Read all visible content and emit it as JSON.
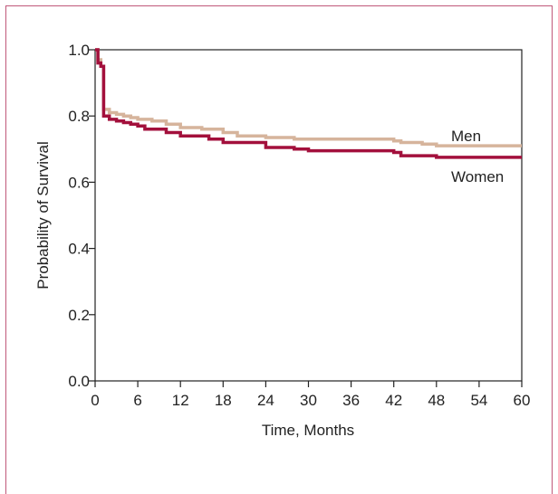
{
  "chart_data": {
    "type": "line",
    "title": "",
    "xlabel": "Time, Months",
    "ylabel": "Probability of Survival",
    "xlim": [
      0,
      60
    ],
    "ylim": [
      0.0,
      1.0
    ],
    "x_ticks": [
      0,
      6,
      12,
      18,
      24,
      30,
      36,
      42,
      48,
      54,
      60
    ],
    "x_tick_labels": [
      "0",
      "6",
      "12",
      "18",
      "24",
      "30",
      "36",
      "42",
      "48",
      "54",
      "60"
    ],
    "y_ticks": [
      0.0,
      0.2,
      0.4,
      0.6,
      0.8,
      1.0
    ],
    "y_tick_labels": [
      "0.0",
      "0.2",
      "0.4",
      "0.6",
      "0.8",
      "1.0"
    ],
    "grid": false,
    "step": true,
    "series": [
      {
        "name": "Men",
        "color": "#d6b49c",
        "x": [
          0,
          0.4,
          0.8,
          1.2,
          2,
          3,
          4,
          5,
          6,
          8,
          10,
          12,
          15,
          18,
          20,
          24,
          28,
          36,
          42,
          43,
          46,
          48,
          60
        ],
        "y": [
          1.0,
          0.97,
          0.95,
          0.82,
          0.81,
          0.805,
          0.8,
          0.795,
          0.79,
          0.785,
          0.775,
          0.765,
          0.76,
          0.75,
          0.74,
          0.735,
          0.73,
          0.73,
          0.725,
          0.72,
          0.715,
          0.71,
          0.71
        ]
      },
      {
        "name": "Women",
        "color": "#a3103c",
        "x": [
          0,
          0.4,
          0.8,
          1.2,
          2,
          3,
          4,
          5,
          6,
          7,
          10,
          12,
          16,
          18,
          24,
          28,
          30,
          42,
          43,
          48,
          60
        ],
        "y": [
          1.0,
          0.96,
          0.95,
          0.8,
          0.79,
          0.785,
          0.78,
          0.775,
          0.77,
          0.76,
          0.75,
          0.74,
          0.73,
          0.72,
          0.705,
          0.7,
          0.695,
          0.69,
          0.68,
          0.675,
          0.675
        ]
      }
    ]
  }
}
